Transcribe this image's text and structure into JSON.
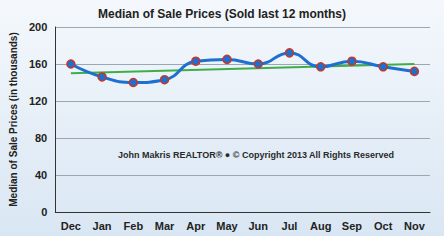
{
  "chart_data": {
    "type": "line",
    "title": "Median of Sale Prices (Sold last 12 months)",
    "y_label": "Median of Sale Prices (in thousands)",
    "annotations": [
      "John Makris REALTOR® ● © Copyright 2013 All Rights Reserved"
    ],
    "categories": [
      "Dec",
      "Jan",
      "Feb",
      "Mar",
      "Apr",
      "May",
      "Jun",
      "Jul",
      "Aug",
      "Sep",
      "Oct",
      "Nov"
    ],
    "series": [
      {
        "color": "#1f6fd0",
        "marker": "circle",
        "line_style": "solid",
        "values": [
          160,
          146,
          140,
          143,
          163,
          165,
          160,
          172,
          157,
          163,
          157,
          152
        ]
      },
      {
        "color": "#3fae49",
        "marker": "none",
        "line_style": "solid",
        "values": [
          150,
          null,
          null,
          null,
          null,
          null,
          null,
          null,
          null,
          null,
          null,
          160
        ]
      }
    ],
    "ylim": [
      0,
      200
    ],
    "yticks": [
      0,
      40,
      80,
      120,
      160,
      200
    ],
    "grid": true
  }
}
